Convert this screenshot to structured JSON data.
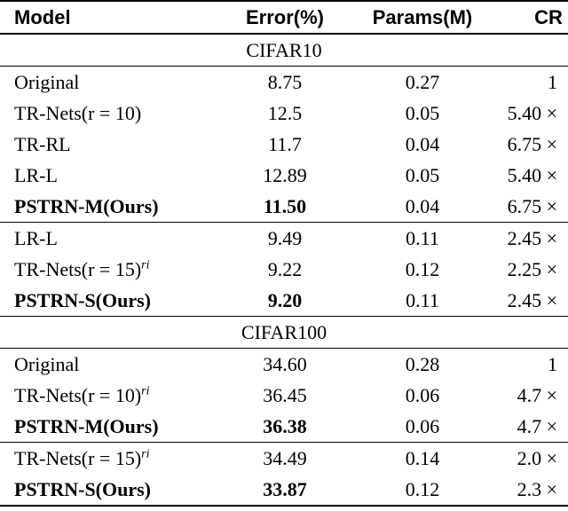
{
  "header": [
    "Model",
    "Error(%)",
    "Params(M)",
    "CR"
  ],
  "sections": [
    {
      "title": "CIFAR10",
      "groups": [
        [
          {
            "model": "Original",
            "error": "8.75",
            "params": "0.27",
            "cr": "1"
          },
          {
            "model": "TR-Nets(r = 10)",
            "error": "12.5",
            "params": "0.05",
            "cr": "5.40 ×"
          },
          {
            "model": "TR-RL",
            "error": "11.7",
            "params": "0.04",
            "cr": "6.75 ×"
          },
          {
            "model": "LR-L",
            "error": "12.89",
            "params": "0.05",
            "cr": "5.40 ×"
          },
          {
            "model": "PSTRN-M(Ours)",
            "error": "11.50",
            "params": "0.04",
            "cr": "6.75 ×",
            "bold": true
          }
        ],
        [
          {
            "model": "LR-L",
            "error": "9.49",
            "params": "0.11",
            "cr": "2.45 ×"
          },
          {
            "model": "TR-Nets(r = 15)",
            "model_sup": "ri",
            "error": "9.22",
            "params": "0.12",
            "cr": "2.25 ×"
          },
          {
            "model": "PSTRN-S(Ours)",
            "error": "9.20",
            "params": "0.11",
            "cr": "2.45 ×",
            "bold": true
          }
        ]
      ]
    },
    {
      "title": "CIFAR100",
      "groups": [
        [
          {
            "model": "Original",
            "error": "34.60",
            "params": "0.28",
            "cr": "1"
          },
          {
            "model": "TR-Nets(r = 10)",
            "model_sup": "ri",
            "error": "36.45",
            "params": "0.06",
            "cr": "4.7 ×"
          },
          {
            "model": "PSTRN-M(Ours)",
            "error": "36.38",
            "params": "0.06",
            "cr": "4.7 ×",
            "bold": true
          }
        ],
        [
          {
            "model": "TR-Nets(r = 15)",
            "model_sup": "ri",
            "error": "34.49",
            "params": "0.14",
            "cr": "2.0 ×"
          },
          {
            "model": "PSTRN-S(Ours)",
            "error": "33.87",
            "params": "0.12",
            "cr": "2.3 ×",
            "bold": true
          }
        ]
      ]
    }
  ]
}
